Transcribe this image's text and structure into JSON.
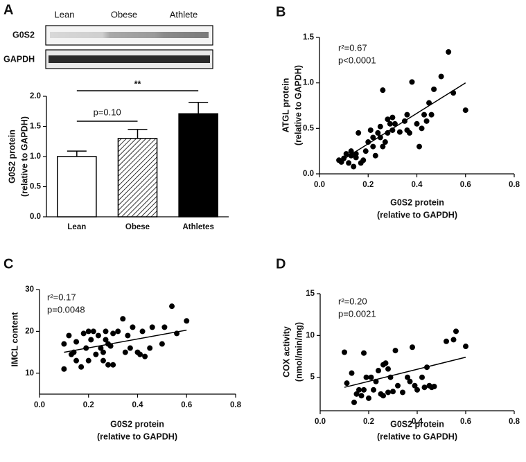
{
  "chart_data": [
    {
      "type": "bar",
      "panel": "A",
      "blot_lanes": [
        "Lean",
        "Obese",
        "Athlete"
      ],
      "blot_rows": [
        "G0S2",
        "GAPDH"
      ],
      "categories": [
        "Lean",
        "Obese",
        "Athletes"
      ],
      "values": [
        1.0,
        1.3,
        1.71
      ],
      "errors": [
        0.09,
        0.15,
        0.19
      ],
      "colors": [
        "#ffffff",
        "#ffffff",
        "#000000"
      ],
      "hatch": [
        false,
        true,
        false
      ],
      "ylabel": [
        "G0S2 protein",
        "(relative to GAPDH)"
      ],
      "ylim": [
        0,
        2.0
      ],
      "yticks": [
        {
          "value": 0,
          "label": "0.0"
        },
        0.5,
        {
          "value": 1,
          "label": "1.0"
        },
        1.5,
        {
          "value": 2,
          "label": "2.0"
        }
      ],
      "annotations": [
        "p=0.10",
        "**"
      ]
    },
    {
      "type": "scatter",
      "panel": "B",
      "x": [
        0.08,
        0.09,
        0.1,
        0.11,
        0.12,
        0.13,
        0.13,
        0.14,
        0.15,
        0.15,
        0.16,
        0.17,
        0.18,
        0.19,
        0.2,
        0.21,
        0.22,
        0.22,
        0.23,
        0.24,
        0.25,
        0.25,
        0.26,
        0.26,
        0.27,
        0.28,
        0.28,
        0.29,
        0.3,
        0.3,
        0.31,
        0.33,
        0.35,
        0.36,
        0.36,
        0.37,
        0.38,
        0.4,
        0.41,
        0.42,
        0.43,
        0.44,
        0.45,
        0.46,
        0.47,
        0.5,
        0.53,
        0.55,
        0.6
      ],
      "values": [
        0.15,
        0.13,
        0.17,
        0.22,
        0.12,
        0.2,
        0.25,
        0.08,
        0.18,
        0.22,
        0.45,
        0.12,
        0.15,
        0.25,
        0.35,
        0.48,
        0.4,
        0.3,
        0.2,
        0.45,
        0.52,
        0.4,
        0.92,
        0.3,
        0.35,
        0.45,
        0.6,
        0.55,
        0.62,
        0.48,
        0.55,
        0.46,
        0.58,
        0.65,
        0.48,
        0.45,
        1.01,
        0.55,
        0.3,
        0.5,
        0.65,
        0.58,
        0.78,
        0.65,
        0.93,
        1.07,
        1.34,
        0.89,
        0.7
      ],
      "trendline": {
        "x": [
          0.08,
          0.6
        ],
        "y": [
          0.13,
          1.0
        ]
      },
      "stats": [
        "r²=0.67",
        "p<0.0001"
      ],
      "xlabel": [
        "G0S2 protein",
        "(relative to GAPDH)"
      ],
      "ylabel": [
        "ATGL protein",
        "(relative to GAPDH)"
      ],
      "xlim": [
        0,
        0.8
      ],
      "ylim": [
        0,
        1.5
      ],
      "xticks": [
        {
          "value": 0,
          "label": "0.0"
        },
        0.2,
        0.4,
        0.6,
        0.8
      ],
      "yticks": [
        {
          "value": 0,
          "label": "0.0"
        },
        0.5,
        {
          "value": 1,
          "label": "1.0"
        },
        1.5
      ]
    },
    {
      "type": "scatter",
      "panel": "C",
      "x": [
        0.1,
        0.1,
        0.12,
        0.13,
        0.14,
        0.15,
        0.15,
        0.17,
        0.18,
        0.19,
        0.2,
        0.2,
        0.21,
        0.22,
        0.23,
        0.24,
        0.25,
        0.26,
        0.26,
        0.27,
        0.27,
        0.28,
        0.28,
        0.29,
        0.3,
        0.3,
        0.32,
        0.34,
        0.35,
        0.36,
        0.37,
        0.38,
        0.4,
        0.41,
        0.42,
        0.43,
        0.45,
        0.46,
        0.5,
        0.51,
        0.54,
        0.56,
        0.6
      ],
      "values": [
        11,
        17,
        19,
        14.5,
        15,
        13,
        17.5,
        11.5,
        19.5,
        16,
        13,
        20,
        18,
        20,
        14.5,
        19,
        16,
        15,
        13,
        20,
        18,
        12,
        17,
        16.5,
        12,
        19.5,
        20,
        23,
        15,
        19,
        16,
        21,
        15,
        14.5,
        20,
        14,
        16,
        21,
        17,
        21,
        26,
        19.5,
        22.5
      ],
      "trendline": {
        "x": [
          0.1,
          0.6
        ],
        "y": [
          15,
          20.3
        ]
      },
      "stats": [
        "r²=0.17",
        "p=0.0048"
      ],
      "xlabel": [
        "G0S2 protein",
        "(relative to GAPDH)"
      ],
      "ylabel": [
        "IMCL content"
      ],
      "xlim": [
        0,
        0.8
      ],
      "ylim": [
        5,
        30
      ],
      "xticks": [
        {
          "value": 0,
          "label": "0.0"
        },
        0.2,
        0.4,
        0.6,
        0.8
      ],
      "yticks": [
        10,
        20,
        30
      ]
    },
    {
      "type": "scatter",
      "panel": "D",
      "x": [
        0.1,
        0.11,
        0.13,
        0.14,
        0.15,
        0.16,
        0.17,
        0.18,
        0.18,
        0.19,
        0.2,
        0.21,
        0.22,
        0.23,
        0.24,
        0.25,
        0.26,
        0.26,
        0.27,
        0.28,
        0.28,
        0.29,
        0.3,
        0.31,
        0.32,
        0.34,
        0.36,
        0.37,
        0.38,
        0.39,
        0.4,
        0.42,
        0.43,
        0.44,
        0.45,
        0.46,
        0.47,
        0.52,
        0.55,
        0.56,
        0.6
      ],
      "values": [
        8,
        4.3,
        5.5,
        2,
        3,
        3.5,
        2.8,
        3.5,
        7.9,
        5,
        2.5,
        5,
        3.5,
        4.5,
        5.8,
        3,
        6.5,
        2.8,
        6.7,
        3.2,
        6,
        5,
        3.3,
        8.2,
        4,
        3.2,
        5,
        4.5,
        8.6,
        4,
        3.5,
        5,
        3.8,
        6.2,
        4,
        3.8,
        3.9,
        9.3,
        9.5,
        10.5,
        8.7
      ],
      "trendline": {
        "x": [
          0.1,
          0.6
        ],
        "y": [
          3.8,
          7.4
        ]
      },
      "stats": [
        "r²=0.20",
        "p=0.0021"
      ],
      "xlabel": [
        "G0S2 protein",
        "(relative to GAPDH)"
      ],
      "ylabel": [
        "COX activity",
        "(nmol/min/mg)"
      ],
      "xlim": [
        0,
        0.8
      ],
      "ylim": [
        1,
        15
      ],
      "xticks": [
        {
          "value": 0,
          "label": "0.0"
        },
        0.2,
        0.4,
        0.6,
        0.8
      ],
      "yticks": [
        5,
        10,
        15
      ]
    }
  ]
}
